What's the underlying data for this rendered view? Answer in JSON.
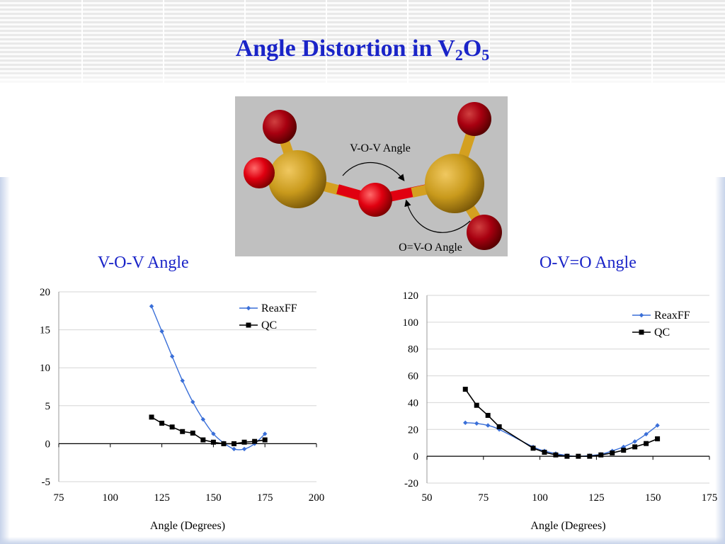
{
  "slide": {
    "title_main": "Angle Distortion in V",
    "title_sub1": "2",
    "title_mid": "O",
    "title_sub2": "5"
  },
  "molecule": {
    "label_vov": "V-O-V Angle",
    "label_ovo": "O=V-O Angle",
    "colors": {
      "vanadium": "#d4a020",
      "oxygen": "#e00010",
      "background": "#c0c0c0"
    }
  },
  "chart_data": [
    {
      "type": "line",
      "title": "V-O-V Angle",
      "xlabel": "Angle (Degrees)",
      "ylabel": "",
      "xlim": [
        75,
        200
      ],
      "ylim": [
        -5,
        20
      ],
      "xticks": [
        "75",
        "100",
        "125",
        "150",
        "175",
        "200"
      ],
      "yticks": [
        "20",
        "15",
        "10",
        "5",
        "0",
        "-5"
      ],
      "legend_position": "top-right",
      "grid": true,
      "series": [
        {
          "name": "ReaxFF",
          "color": "#3a6fd8",
          "marker": "diamond",
          "x": [
            120,
            125,
            130,
            135,
            140,
            145,
            150,
            155,
            160,
            165,
            170,
            175
          ],
          "y": [
            18.1,
            14.8,
            11.5,
            8.3,
            5.5,
            3.2,
            1.3,
            0.1,
            -0.7,
            -0.7,
            0.0,
            1.3
          ]
        },
        {
          "name": "QC",
          "color": "#000000",
          "marker": "square",
          "x": [
            120,
            125,
            130,
            135,
            140,
            145,
            150,
            155,
            160,
            165,
            170,
            175
          ],
          "y": [
            3.5,
            2.7,
            2.2,
            1.6,
            1.4,
            0.5,
            0.2,
            0.0,
            0.0,
            0.2,
            0.3,
            0.5
          ]
        }
      ]
    },
    {
      "type": "line",
      "title": "O-V=O Angle",
      "xlabel": "Angle (Degrees)",
      "ylabel": "",
      "xlim": [
        50,
        175
      ],
      "ylim": [
        -20,
        120
      ],
      "xticks": [
        "50",
        "75",
        "100",
        "125",
        "150",
        "175"
      ],
      "yticks": [
        "120",
        "100",
        "80",
        "60",
        "40",
        "20",
        "0",
        "-20"
      ],
      "legend_position": "top-right",
      "grid": true,
      "series": [
        {
          "name": "ReaxFF",
          "color": "#3a6fd8",
          "marker": "diamond",
          "x": [
            67,
            72,
            77,
            82,
            97,
            102,
            107,
            112,
            117,
            122,
            127,
            132,
            137,
            142,
            147,
            152
          ],
          "y": [
            25,
            24.5,
            23,
            20,
            7,
            4,
            2,
            0.5,
            0,
            0.5,
            1.5,
            4,
            7,
            11,
            16.5,
            23
          ]
        },
        {
          "name": "QC",
          "color": "#000000",
          "marker": "square",
          "x": [
            67,
            72,
            77,
            82,
            97,
            102,
            107,
            112,
            117,
            122,
            127,
            132,
            137,
            142,
            147,
            152
          ],
          "y": [
            50,
            38,
            30.5,
            22,
            6,
            3,
            1,
            0,
            0,
            0,
            1,
            2.5,
            4.5,
            7,
            9.5,
            13
          ]
        }
      ]
    }
  ]
}
